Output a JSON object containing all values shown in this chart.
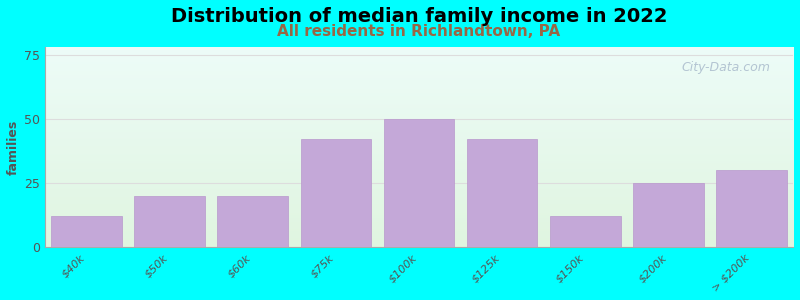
{
  "title": "Distribution of median family income in 2022",
  "subtitle": "All residents in Richlandtown, PA",
  "ylabel": "families",
  "categories": [
    "$40k",
    "$50k",
    "$60k",
    "$75k",
    "$100k",
    "$125k",
    "$150k",
    "$200k",
    "> $200k"
  ],
  "values": [
    12,
    20,
    20,
    42,
    50,
    42,
    12,
    25,
    30
  ],
  "bar_color": "#c4a8d8",
  "bar_edge_color": "#b898cc",
  "background_color": "#00ffff",
  "plot_bg_top_color": "#edfcf8",
  "plot_bg_bottom_color": "#e0f5e0",
  "ylim": [
    0,
    78
  ],
  "yticks": [
    0,
    25,
    50,
    75
  ],
  "title_fontsize": 14,
  "subtitle_fontsize": 11,
  "ylabel_fontsize": 9,
  "subtitle_color": "#996644",
  "watermark": "City-Data.com",
  "grid_color": "#dddddd",
  "tick_label_color": "#555555",
  "ylabel_color": "#555555"
}
